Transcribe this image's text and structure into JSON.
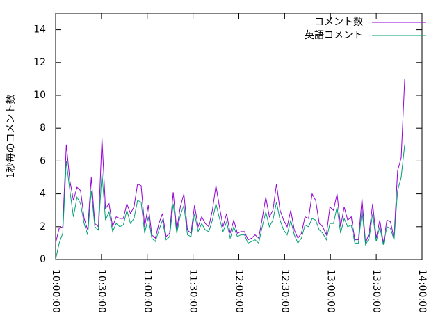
{
  "chart_data": {
    "type": "line",
    "y_label": "1秒毎のコメント数",
    "x": [
      "10:00:00",
      "10:02:20",
      "10:04:40",
      "10:07:00",
      "10:09:20",
      "10:11:40",
      "10:14:00",
      "10:16:20",
      "10:18:40",
      "10:21:00",
      "10:23:20",
      "10:25:40",
      "10:28:00",
      "10:30:20",
      "10:32:40",
      "10:35:00",
      "10:37:20",
      "10:39:40",
      "10:42:00",
      "10:44:20",
      "10:46:40",
      "10:49:00",
      "10:51:20",
      "10:53:40",
      "10:56:00",
      "10:58:20",
      "11:00:40",
      "11:03:00",
      "11:05:20",
      "11:07:40",
      "11:10:00",
      "11:12:20",
      "11:14:40",
      "11:17:00",
      "11:19:20",
      "11:21:40",
      "11:24:00",
      "11:26:20",
      "11:28:40",
      "11:31:00",
      "11:33:20",
      "11:35:40",
      "11:38:00",
      "11:40:20",
      "11:42:40",
      "11:45:00",
      "11:47:20",
      "11:49:40",
      "11:52:00",
      "11:54:20",
      "11:56:40",
      "11:59:00",
      "12:01:20",
      "12:03:40",
      "12:06:00",
      "12:08:20",
      "12:10:40",
      "12:13:00",
      "12:15:20",
      "12:17:40",
      "12:20:00",
      "12:22:20",
      "12:24:40",
      "12:27:00",
      "12:29:20",
      "12:31:40",
      "12:34:00",
      "12:36:20",
      "12:38:40",
      "12:41:00",
      "12:43:20",
      "12:45:40",
      "12:48:00",
      "12:50:20",
      "12:52:40",
      "12:55:00",
      "12:57:20",
      "12:59:40",
      "13:02:00",
      "13:04:20",
      "13:06:40",
      "13:09:00",
      "13:11:20",
      "13:13:40",
      "13:16:00",
      "13:18:20",
      "13:20:40",
      "13:23:00",
      "13:25:20",
      "13:27:40",
      "13:30:00",
      "13:32:20",
      "13:34:40",
      "13:37:00",
      "13:39:20",
      "13:41:40",
      "13:44:00",
      "13:46:20",
      "13:48:40"
    ],
    "series": [
      {
        "name": "コメント数",
        "color": "#9400d3",
        "values": [
          1.0,
          1.9,
          2.0,
          7.0,
          4.8,
          3.6,
          4.4,
          4.2,
          2.5,
          1.8,
          5.0,
          2.2,
          2.0,
          7.4,
          3.1,
          3.4,
          2.0,
          2.6,
          2.5,
          2.5,
          3.4,
          2.8,
          3.2,
          4.6,
          4.5,
          2.0,
          3.3,
          1.5,
          1.3,
          2.2,
          2.8,
          1.4,
          1.6,
          4.1,
          1.8,
          3.2,
          4.0,
          1.8,
          1.6,
          3.3,
          2.0,
          2.6,
          2.2,
          2.0,
          3.0,
          4.5,
          3.2,
          2.0,
          2.8,
          1.6,
          2.4,
          1.6,
          1.7,
          1.7,
          1.2,
          1.3,
          1.5,
          1.3,
          2.5,
          3.8,
          2.6,
          3.0,
          4.6,
          3.0,
          2.4,
          2.0,
          3.0,
          1.8,
          1.3,
          1.6,
          2.6,
          2.5,
          4.0,
          3.6,
          2.2,
          2.0,
          1.5,
          3.2,
          3.0,
          4.0,
          2.0,
          3.2,
          2.4,
          2.6,
          1.2,
          1.2,
          3.7,
          1.0,
          1.6,
          3.4,
          1.3,
          2.4,
          1.0,
          2.4,
          2.3,
          1.3,
          5.4,
          6.2,
          11.0
        ]
      },
      {
        "name": "英語コメント",
        "color": "#009e73",
        "values": [
          0,
          1.0,
          1.6,
          6.0,
          4.2,
          2.6,
          3.8,
          3.4,
          2.2,
          1.5,
          4.2,
          2.0,
          1.8,
          5.3,
          2.4,
          2.9,
          1.7,
          2.2,
          2.0,
          2.1,
          3.0,
          2.2,
          2.5,
          3.6,
          3.5,
          1.6,
          2.6,
          1.3,
          1.1,
          1.8,
          2.4,
          1.2,
          1.4,
          3.4,
          1.6,
          2.7,
          3.3,
          1.5,
          1.4,
          2.8,
          1.7,
          2.2,
          1.8,
          1.7,
          2.4,
          3.4,
          2.5,
          1.7,
          2.3,
          1.3,
          2.0,
          1.4,
          1.5,
          1.5,
          1.0,
          1.1,
          1.2,
          1.0,
          2.0,
          2.9,
          2.0,
          2.4,
          3.5,
          2.4,
          1.8,
          1.5,
          2.4,
          1.5,
          1.0,
          1.3,
          2.1,
          2.0,
          2.5,
          2.4,
          1.8,
          1.6,
          1.2,
          2.2,
          2.2,
          3.2,
          1.6,
          2.5,
          2.0,
          2.1,
          1.0,
          1.0,
          3.0,
          0.9,
          1.3,
          2.8,
          1.1,
          2.0,
          0.9,
          2.0,
          1.9,
          1.2,
          4.2,
          5.0,
          7.0
        ]
      }
    ],
    "xlim": [
      "10:00:00",
      "14:00:00"
    ],
    "xticks": [
      "10:00:00",
      "10:30:00",
      "11:00:00",
      "11:30:00",
      "12:00:00",
      "12:30:00",
      "13:00:00",
      "13:30:00",
      "14:00:00"
    ],
    "ylim": [
      0,
      15
    ],
    "yticks": [
      0,
      2,
      4,
      6,
      8,
      10,
      12,
      14
    ],
    "legend": "top-right"
  }
}
